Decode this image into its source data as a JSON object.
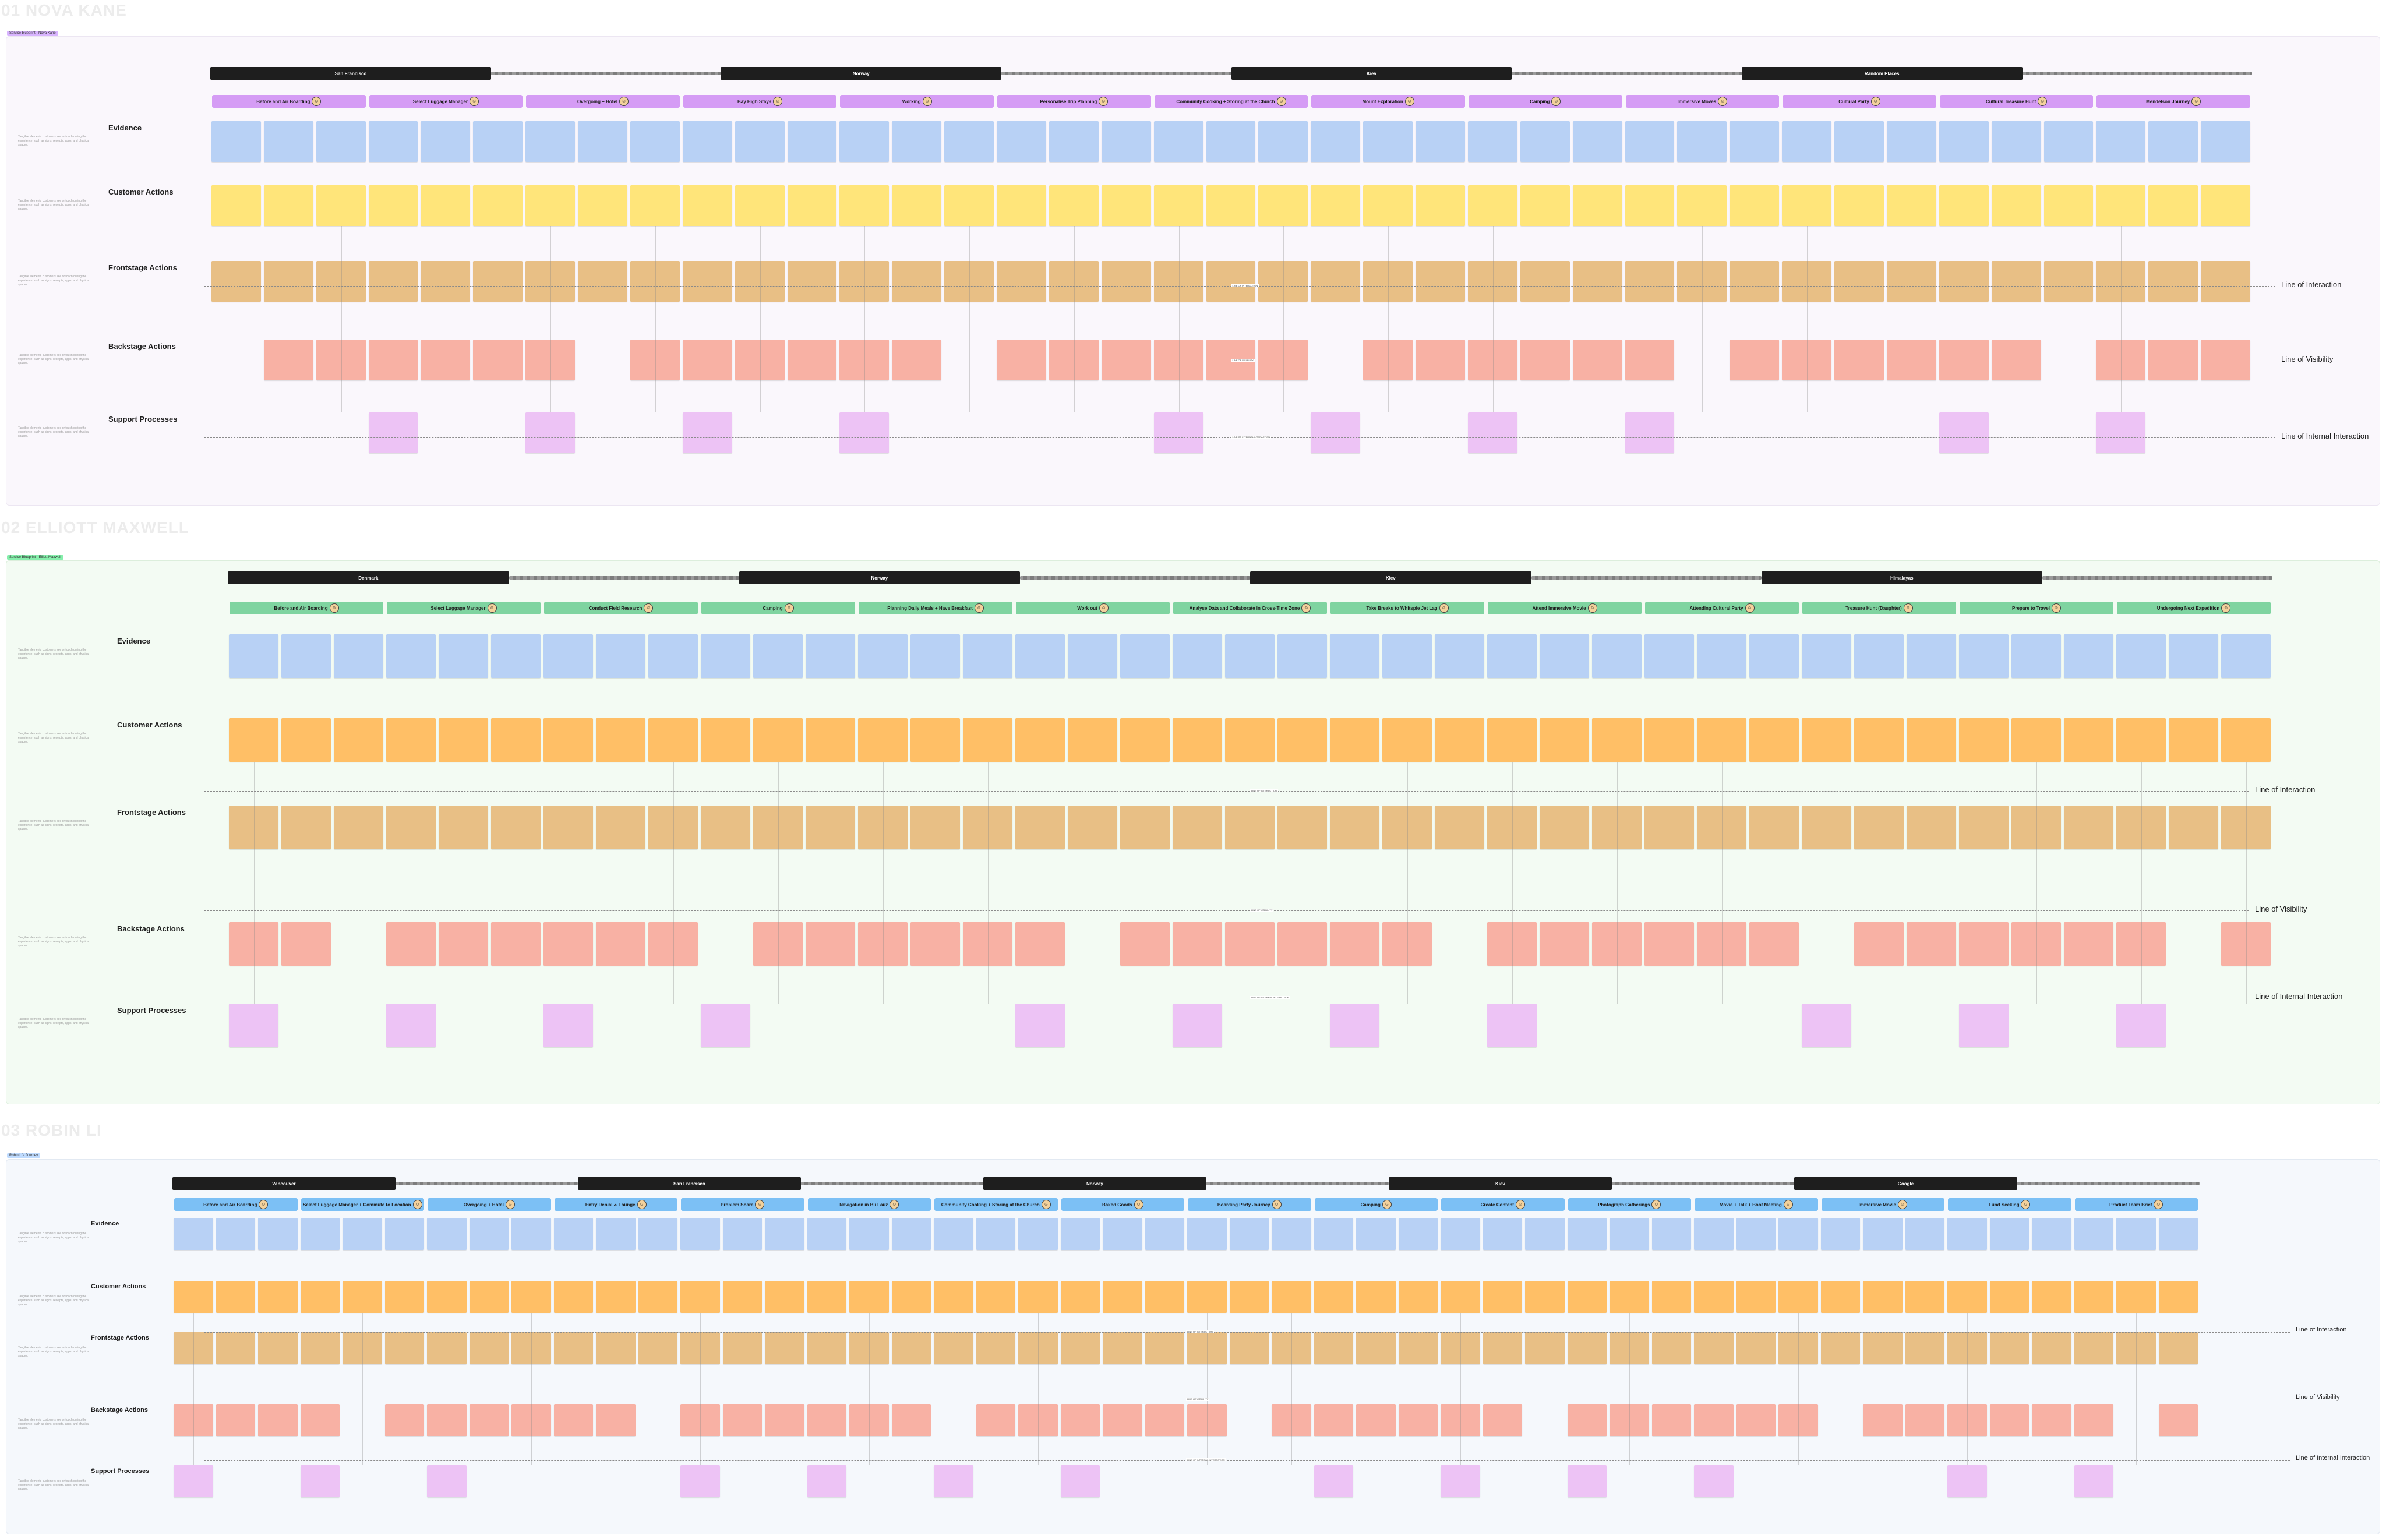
{
  "boards": [
    {
      "title": "01 NOVA KANE",
      "tag": "Service blueprint · Nova Kane",
      "tag_color": "#d8b4fe",
      "bg": "#faf7fc",
      "border": "#ece6f2",
      "phases": [
        "San Francisco",
        "Norway",
        "Kiev",
        "Random Places"
      ],
      "stage_color": "#d59cf5",
      "stages": [
        "Before and Air Boarding",
        "Select Luggage Manager",
        "Overgoing + Hotel",
        "Bay High Stays",
        "Working",
        "Personalise Trip Planning",
        "Community Cooking + Storing at the Church",
        "Mount Exploration",
        "Camping",
        "Immersive Moves",
        "Cultural Party",
        "Cultural Treasure Hunt",
        "Mendelson Journey"
      ],
      "rows": [
        "Evidence",
        "Customer Actions",
        "Frontstage Actions",
        "Backstage Actions",
        "Support Processes"
      ],
      "lines": [
        "Line of Interaction",
        "Line of Visibility",
        "Line of Internal Interaction"
      ]
    },
    {
      "title": "02 ELLIOTT MAXWELL",
      "tag": "Service Blueprint · Elliott Maxwell",
      "tag_color": "#86efac",
      "bg": "#f3fbf3",
      "border": "#dceedc",
      "phases": [
        "Denmark",
        "Norway",
        "Kiev",
        "Himalayas"
      ],
      "stage_color": "#7fd4a0",
      "stages": [
        "Before and Air Boarding",
        "Select Luggage Manager",
        "Conduct Field Research",
        "Camping",
        "Planning Daily Meals + Have Breakfast",
        "Work out",
        "Analyse Data and Collaborate in Cross-Time Zone",
        "Take Breaks to Whitspie Jet Lag",
        "Attend Immersive Movie",
        "Attending Cultural Party",
        "Treasure Hunt (Daughter)",
        "Prepare to Travel",
        "Undergoing Next Expedition"
      ],
      "rows": [
        "Evidence",
        "Customer Actions",
        "Frontstage Actions",
        "Backstage Actions",
        "Support Processes"
      ],
      "lines": [
        "Line of Interaction",
        "Line of Visibility",
        "Line of Internal Interaction"
      ]
    },
    {
      "title": "03 ROBIN LI",
      "tag": "Robin Li's Journey",
      "tag_color": "#bfdbfe",
      "bg": "#f5f8fc",
      "border": "#e2e9f2",
      "phases": [
        "Vancouver",
        "San Francisco",
        "Norway",
        "Kiev",
        "Google"
      ],
      "stage_color": "#7cc0f5",
      "stages": [
        "Before and Air Boarding",
        "Select Luggage Manager + Commute to Location",
        "Overgoing + Hotel",
        "Entry Denial & Lounge",
        "Problem Share",
        "Navigation in Bli Fauz",
        "Community Cooking + Storing at the Church",
        "Baked Goods",
        "Boarding Party Journey",
        "Camping",
        "Create Content",
        "Photograph Gatherings",
        "Movie + Talk + Boot Meeting",
        "Immersive Movie",
        "Fund Seeking",
        "Product Team Brief"
      ],
      "rows": [
        "Evidence",
        "Customer Actions",
        "Frontstage Actions",
        "Backstage Actions",
        "Support Processes"
      ],
      "lines": [
        "Line of Interaction",
        "Line of Visibility",
        "Line of Internal Interaction"
      ]
    }
  ],
  "descriptions": {
    "row_desc": "Tangible elements customers see or touch during the experience, such as signs, receipts, apps, and physical spaces.",
    "line_desc": "Separates actions the customer performs from the employee actions they directly interact with."
  }
}
